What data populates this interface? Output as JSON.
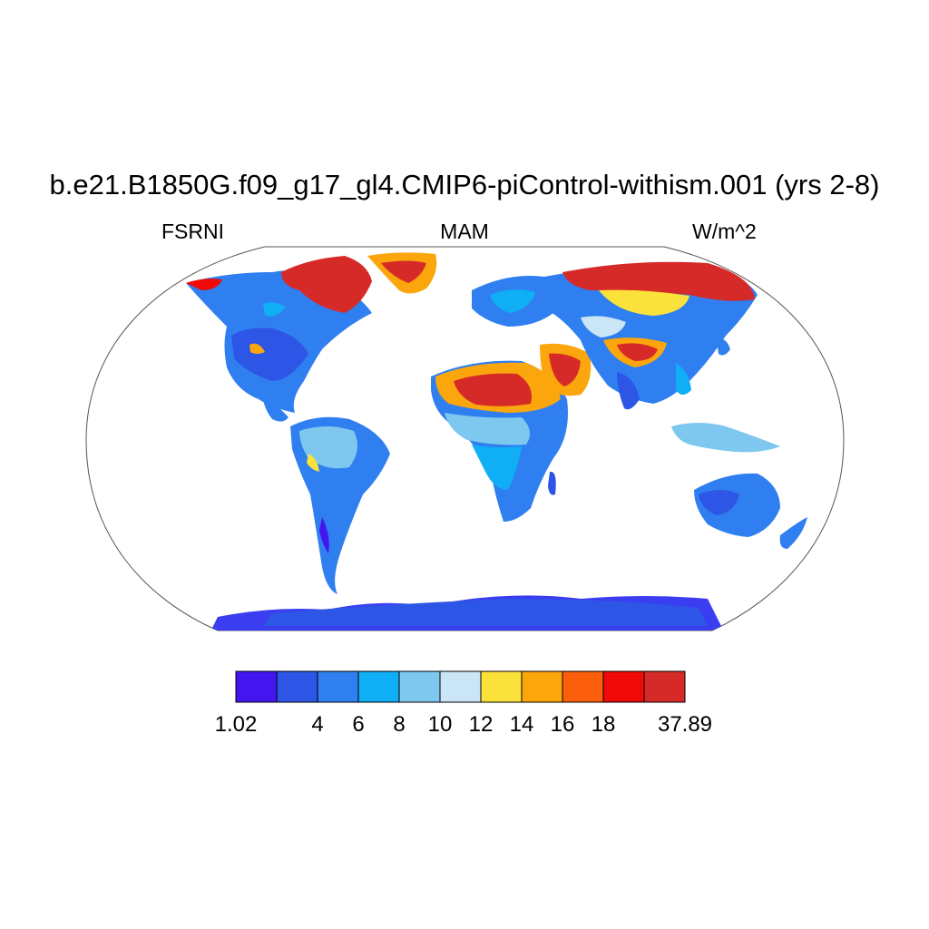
{
  "title": "b.e21.B1850G.f09_g17_gl4.CMIP6-piControl-withism.001 (yrs 2-8)",
  "left_label": "FSRNI",
  "center_label": "MAM",
  "right_label": "W/m^2",
  "colorbar": {
    "colors": [
      "#4316f0",
      "#2d55e6",
      "#2f7ff0",
      "#0faef5",
      "#7ec8ef",
      "#c9e5f6",
      "#fbe23a",
      "#fba60d",
      "#fb5f0b",
      "#f00a08",
      "#d62a28"
    ],
    "labels": [
      "1.02",
      "",
      "4",
      "6",
      "8",
      "10",
      "12",
      "14",
      "16",
      "18",
      "",
      "37.89"
    ]
  },
  "land_colors": {
    "ocean": "#ffffff",
    "coast": "#111111",
    "antarctica": "#3a3ef0"
  }
}
